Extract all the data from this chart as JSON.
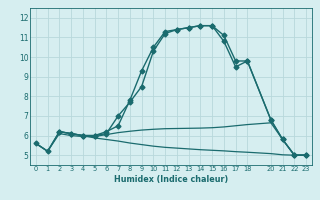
{
  "xlabel": "Humidex (Indice chaleur)",
  "bg_color": "#d6eef0",
  "grid_color": "#b8d8db",
  "line_color": "#1a6b6e",
  "xlim": [
    -0.5,
    23.5
  ],
  "ylim": [
    4.5,
    12.5
  ],
  "xticks": [
    0,
    1,
    2,
    3,
    4,
    5,
    6,
    7,
    8,
    9,
    10,
    11,
    12,
    13,
    14,
    15,
    16,
    17,
    18,
    20,
    21,
    22,
    23
  ],
  "yticks": [
    5,
    6,
    7,
    8,
    9,
    10,
    11,
    12
  ],
  "series": [
    {
      "x": [
        0,
        1,
        2,
        3,
        4,
        5,
        6,
        7,
        8,
        9,
        10,
        11,
        12,
        13,
        14,
        15,
        16,
        17,
        18,
        20,
        21,
        22,
        23
      ],
      "y": [
        5.6,
        5.2,
        6.2,
        6.1,
        6.0,
        6.0,
        6.2,
        6.5,
        7.8,
        9.3,
        10.5,
        11.3,
        11.4,
        11.5,
        11.6,
        11.6,
        11.1,
        9.8,
        9.8,
        6.8,
        5.8,
        5.0,
        5.0
      ],
      "marker": "D",
      "markersize": 2.5,
      "linewidth": 1.0
    },
    {
      "x": [
        2,
        3,
        4,
        5,
        6,
        7,
        8,
        9,
        10,
        11,
        12,
        13,
        14,
        15,
        16,
        17,
        18,
        20,
        21,
        22,
        23
      ],
      "y": [
        6.2,
        6.1,
        6.0,
        6.0,
        6.1,
        7.0,
        7.7,
        8.5,
        10.3,
        11.2,
        11.4,
        11.5,
        11.6,
        11.6,
        10.8,
        9.5,
        9.8,
        6.8,
        5.8,
        5.0,
        5.0
      ],
      "marker": "D",
      "markersize": 2.5,
      "linewidth": 1.0
    },
    {
      "x": [
        0,
        1,
        2,
        3,
        4,
        5,
        6,
        7,
        8,
        9,
        10,
        11,
        12,
        13,
        14,
        15,
        16,
        17,
        18,
        20,
        21,
        22,
        23
      ],
      "y": [
        5.6,
        5.2,
        6.1,
        6.0,
        5.95,
        5.95,
        6.05,
        6.15,
        6.22,
        6.28,
        6.32,
        6.35,
        6.36,
        6.37,
        6.38,
        6.4,
        6.44,
        6.5,
        6.56,
        6.65,
        5.8,
        5.0,
        5.0
      ],
      "marker": null,
      "linewidth": 0.9
    },
    {
      "x": [
        0,
        1,
        2,
        3,
        4,
        5,
        6,
        7,
        8,
        9,
        10,
        11,
        12,
        13,
        14,
        15,
        16,
        17,
        18,
        20,
        21,
        22,
        23
      ],
      "y": [
        5.6,
        5.2,
        6.2,
        6.1,
        6.0,
        5.88,
        5.8,
        5.72,
        5.62,
        5.54,
        5.46,
        5.4,
        5.36,
        5.32,
        5.28,
        5.25,
        5.22,
        5.18,
        5.15,
        5.08,
        5.02,
        5.0,
        5.0
      ],
      "marker": null,
      "linewidth": 0.9
    }
  ]
}
